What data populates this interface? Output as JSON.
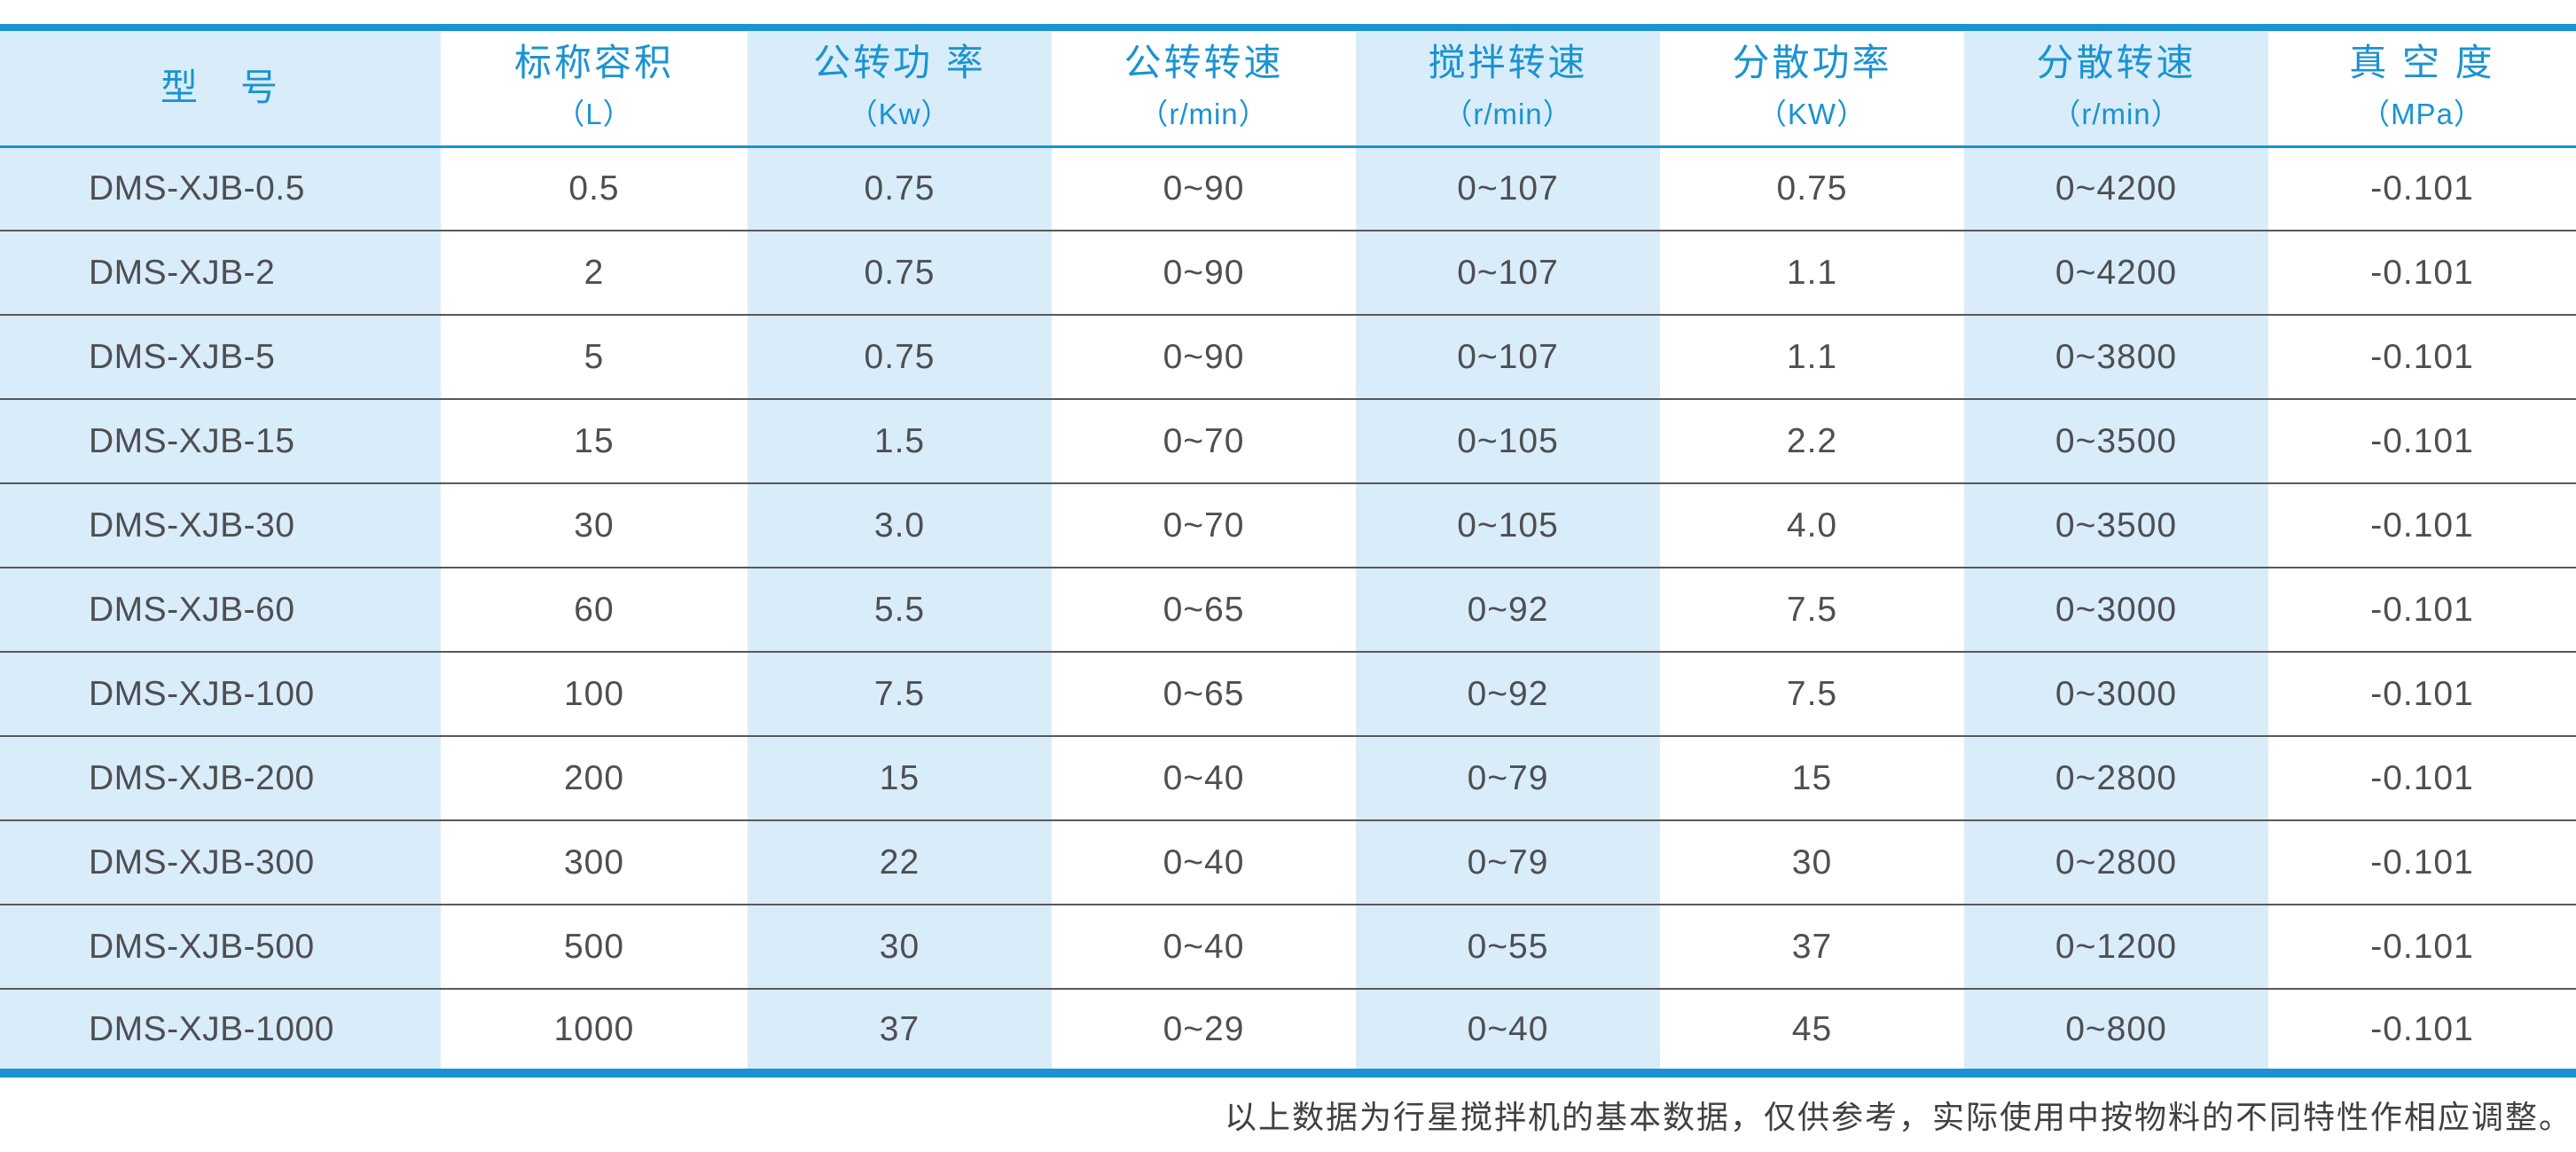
{
  "colors": {
    "accent_blue": "#1a93d2",
    "light_blue_bg": "#d9ecf9",
    "row_divider": "#58595b",
    "data_text": "#4d4f53",
    "footnote_text": "#404042"
  },
  "table": {
    "columns": [
      {
        "title": "型　号",
        "unit": "",
        "shaded": true
      },
      {
        "title": "标称容积",
        "unit": "（L）",
        "shaded": false
      },
      {
        "title": "公转功 率",
        "unit": "（Kw）",
        "shaded": true
      },
      {
        "title": "公转转速",
        "unit": "（r/min）",
        "shaded": false
      },
      {
        "title": "搅拌转速",
        "unit": "（r/min）",
        "shaded": true
      },
      {
        "title": "分散功率",
        "unit": "（KW）",
        "shaded": false
      },
      {
        "title": "分散转速",
        "unit": "（r/min）",
        "shaded": true
      },
      {
        "title": "真 空 度",
        "unit": "（MPa）",
        "shaded": false
      }
    ],
    "rows": [
      [
        "DMS-XJB-0.5",
        "0.5",
        "0.75",
        "0~90",
        "0~107",
        "0.75",
        "0~4200",
        "-0.101"
      ],
      [
        "DMS-XJB-2",
        "2",
        "0.75",
        "0~90",
        "0~107",
        "1.1",
        "0~4200",
        "-0.101"
      ],
      [
        "DMS-XJB-5",
        "5",
        "0.75",
        "0~90",
        "0~107",
        "1.1",
        "0~3800",
        "-0.101"
      ],
      [
        "DMS-XJB-15",
        "15",
        "1.5",
        "0~70",
        "0~105",
        "2.2",
        "0~3500",
        "-0.101"
      ],
      [
        "DMS-XJB-30",
        "30",
        "3.0",
        "0~70",
        "0~105",
        "4.0",
        "0~3500",
        "-0.101"
      ],
      [
        "DMS-XJB-60",
        "60",
        "5.5",
        "0~65",
        "0~92",
        "7.5",
        "0~3000",
        "-0.101"
      ],
      [
        "DMS-XJB-100",
        "100",
        "7.5",
        "0~65",
        "0~92",
        "7.5",
        "0~3000",
        "-0.101"
      ],
      [
        "DMS-XJB-200",
        "200",
        "15",
        "0~40",
        "0~79",
        "15",
        "0~2800",
        "-0.101"
      ],
      [
        "DMS-XJB-300",
        "300",
        "22",
        "0~40",
        "0~79",
        "30",
        "0~2800",
        "-0.101"
      ],
      [
        "DMS-XJB-500",
        "500",
        "30",
        "0~40",
        "0~55",
        "37",
        "0~1200",
        "-0.101"
      ],
      [
        "DMS-XJB-1000",
        "1000",
        "37",
        "0~29",
        "0~40",
        "45",
        "0~800",
        "-0.101"
      ]
    ]
  },
  "footnote": "以上数据为行星搅拌机的基本数据，仅供参考，实际使用中按物料的不同特性作相应调整。"
}
